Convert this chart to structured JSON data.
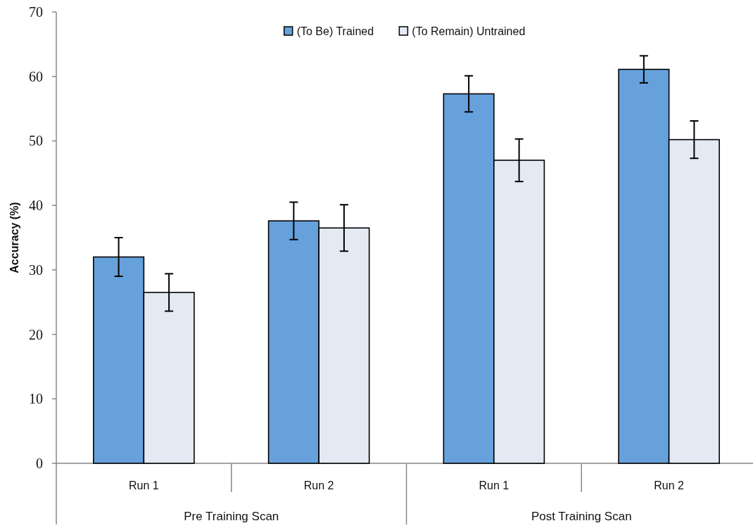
{
  "chart_data": {
    "type": "bar",
    "ylabel": "Accuracy (%)",
    "categories": [
      "Run 1",
      "Run 2",
      "Run 1",
      "Run 2"
    ],
    "annotations": [
      "Pre Training Scan",
      "Post Training Scan"
    ],
    "series": [
      {
        "name": "(To Be) Trained",
        "color": "#66a1dc",
        "values": [
          32.0,
          37.6,
          57.3,
          61.1
        ],
        "errors": [
          3.0,
          2.9,
          2.8,
          2.1
        ]
      },
      {
        "name": "(To Remain) Untrained",
        "color": "#e3eaf4",
        "values": [
          26.5,
          36.5,
          47.0,
          50.2
        ],
        "errors": [
          2.9,
          3.6,
          3.3,
          2.9
        ]
      }
    ],
    "ylim": [
      0,
      70
    ],
    "yticks": [
      0,
      10,
      20,
      30,
      40,
      50,
      60,
      70
    ],
    "legend": "top"
  }
}
